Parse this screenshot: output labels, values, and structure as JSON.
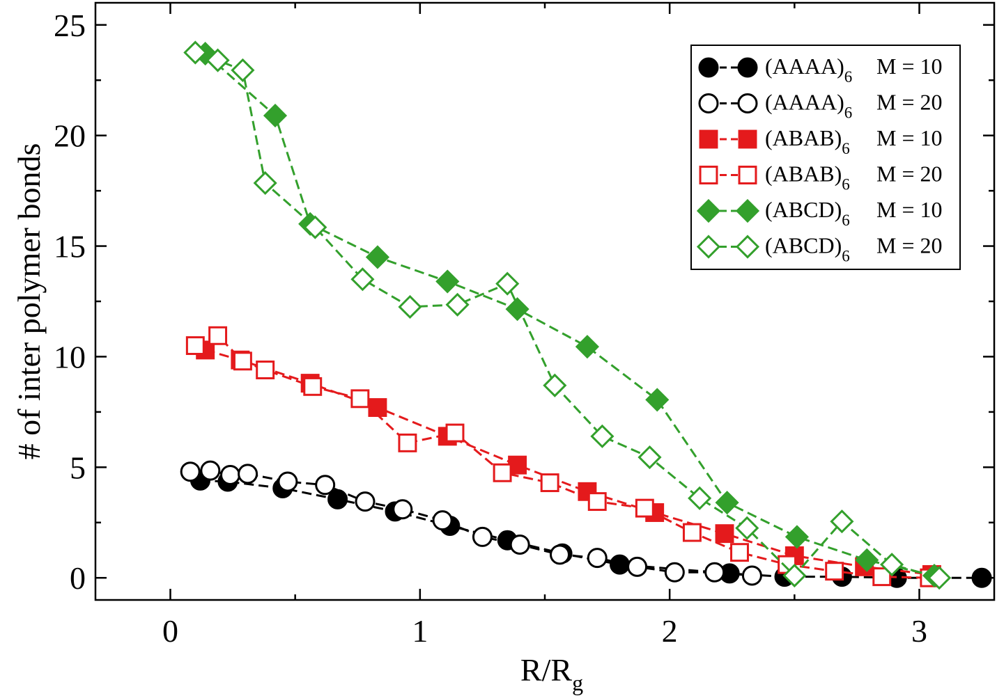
{
  "chart_data": {
    "type": "line",
    "xlabel": "R/R",
    "xlabel_sub": "g",
    "ylabel": "# of inter polymer bonds",
    "xlim": [
      -0.3,
      3.3
    ],
    "ylim": [
      -1,
      26
    ],
    "xticks": [
      0,
      1,
      2,
      3
    ],
    "yticks": [
      0,
      5,
      10,
      15,
      20,
      25
    ],
    "xtick_labels": [
      "0",
      "1",
      "2",
      "3"
    ],
    "ytick_labels": [
      "0",
      "5",
      "10",
      "15",
      "20",
      "25"
    ],
    "legend_position": "top-right",
    "grid": false,
    "series": [
      {
        "name": "(AAAA)",
        "name_sub": "6",
        "name_suffix": "M = 10",
        "color": "#000000",
        "marker": "circle",
        "filled": true,
        "x": [
          0.12,
          0.23,
          0.45,
          0.67,
          0.9,
          1.12,
          1.35,
          1.57,
          1.8,
          2.24,
          2.46,
          2.69,
          2.91,
          3.25
        ],
        "y": [
          4.4,
          4.35,
          4.05,
          3.55,
          3.0,
          2.35,
          1.7,
          1.1,
          0.6,
          0.2,
          0.05,
          0.05,
          0.0,
          0.0
        ]
      },
      {
        "name": "(AAAA)",
        "name_sub": "6",
        "name_suffix": "M = 20",
        "color": "#000000",
        "marker": "circle",
        "filled": false,
        "x": [
          0.08,
          0.16,
          0.24,
          0.31,
          0.47,
          0.62,
          0.78,
          0.93,
          1.09,
          1.25,
          1.4,
          1.56,
          1.71,
          1.87,
          2.02,
          2.18,
          2.33
        ],
        "y": [
          4.8,
          4.85,
          4.65,
          4.7,
          4.35,
          4.2,
          3.45,
          3.1,
          2.6,
          1.85,
          1.5,
          1.05,
          0.9,
          0.5,
          0.25,
          0.25,
          0.1
        ]
      },
      {
        "name": "(ABAB)",
        "name_sub": "6",
        "name_suffix": "M = 10",
        "color": "#e41a1c",
        "marker": "square",
        "filled": true,
        "x": [
          0.14,
          0.28,
          0.56,
          0.83,
          1.11,
          1.39,
          1.67,
          1.94,
          2.22,
          2.5,
          2.78,
          3.05
        ],
        "y": [
          10.3,
          9.85,
          8.8,
          7.7,
          6.4,
          5.1,
          3.9,
          2.95,
          2.0,
          1.0,
          0.5,
          0.15
        ]
      },
      {
        "name": "(ABAB)",
        "name_sub": "6",
        "name_suffix": "M = 20",
        "color": "#e41a1c",
        "marker": "square",
        "filled": false,
        "x": [
          0.1,
          0.19,
          0.29,
          0.38,
          0.57,
          0.76,
          0.95,
          1.14,
          1.33,
          1.52,
          1.71,
          1.9,
          2.09,
          2.28,
          2.47,
          2.66,
          2.85,
          3.04
        ],
        "y": [
          10.5,
          10.95,
          9.8,
          9.4,
          8.65,
          8.1,
          6.1,
          6.55,
          4.75,
          4.3,
          3.45,
          3.15,
          2.05,
          1.15,
          0.6,
          0.3,
          0.05,
          0.0
        ]
      },
      {
        "name": "(ABCD)",
        "name_sub": "6",
        "name_suffix": "M = 10",
        "color": "#33a02c",
        "marker": "diamond",
        "filled": true,
        "x": [
          0.14,
          0.42,
          0.56,
          0.83,
          1.11,
          1.39,
          1.67,
          1.95,
          2.23,
          2.51,
          2.79,
          3.06
        ],
        "y": [
          23.7,
          20.9,
          16.0,
          14.5,
          13.4,
          12.15,
          10.45,
          8.05,
          3.4,
          1.85,
          0.8,
          0.1
        ]
      },
      {
        "name": "(ABCD)",
        "name_sub": "6",
        "name_suffix": "M = 20",
        "color": "#33a02c",
        "marker": "diamond",
        "filled": false,
        "x": [
          0.1,
          0.19,
          0.29,
          0.38,
          0.58,
          0.77,
          0.96,
          1.15,
          1.35,
          1.54,
          1.73,
          1.92,
          2.12,
          2.31,
          2.5,
          2.69,
          2.89,
          3.08
        ],
        "y": [
          23.75,
          23.4,
          22.95,
          17.85,
          15.85,
          13.5,
          12.25,
          12.35,
          13.3,
          8.7,
          6.4,
          5.45,
          3.6,
          2.25,
          0.1,
          2.55,
          0.6,
          0.0
        ]
      }
    ]
  }
}
